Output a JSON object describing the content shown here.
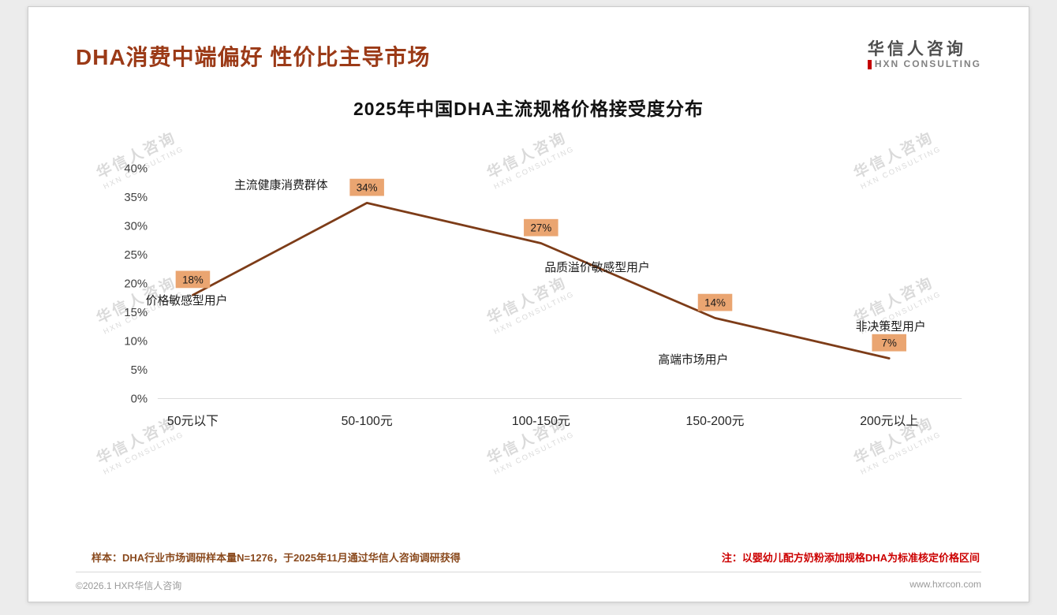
{
  "header": {
    "title": "DHA消费中端偏好 性价比主导市场",
    "logo": {
      "name": "华信人咨询",
      "sub": "HXN CONSULTING"
    }
  },
  "watermark": {
    "line1": "华信人咨询",
    "line2": "HXN CONSULTING"
  },
  "chart_data": {
    "type": "line",
    "title": "2025年中国DHA主流规格价格接受度分布",
    "categories": [
      "50元以下",
      "50-100元",
      "100-150元",
      "150-200元",
      "200元以上"
    ],
    "values": [
      18,
      34,
      27,
      14,
      7
    ],
    "unit": "%",
    "ylim": [
      0,
      40
    ],
    "ytick_step": 5,
    "grid": false,
    "legend": false,
    "line_color": "#7d3c18",
    "label_bg": "#eaa571",
    "annotations": [
      {
        "index": 0,
        "text": "价格敏感型用户"
      },
      {
        "index": 1,
        "text": "主流健康消费群体"
      },
      {
        "index": 2,
        "text": "品质溢价敏感型用户"
      },
      {
        "index": 3,
        "text": "高端市场用户"
      },
      {
        "index": 4,
        "text": "非决策型用户"
      }
    ]
  },
  "footer": {
    "sample_note": "样本：DHA行业市场调研样本量N=1276，于2025年11月通过华信人咨询调研获得",
    "price_note": "注：以婴幼儿配方奶粉添加规格DHA为标准核定价格区间",
    "copyright": "©2026.1 HXR华信人咨询",
    "website": "www.hxrcon.com"
  }
}
